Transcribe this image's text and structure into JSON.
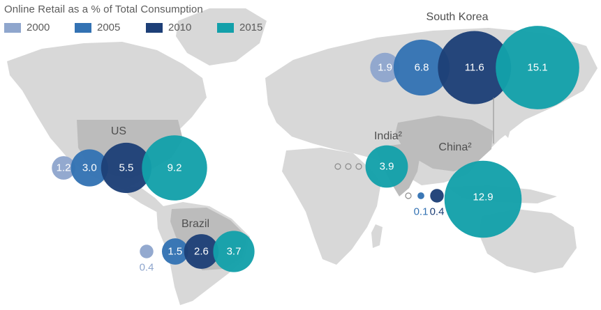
{
  "chart_data": {
    "type": "bubble-map",
    "title": "Online Retail as a % of Total Consumption",
    "legend": [
      {
        "year": "2000",
        "color": "#8fa6cd"
      },
      {
        "year": "2005",
        "color": "#3372b3"
      },
      {
        "year": "2010",
        "color": "#1d3f77"
      },
      {
        "year": "2015",
        "color": "#13a0aa"
      }
    ],
    "regions": [
      {
        "name": "South Korea",
        "values": [
          "1.9",
          "6.8",
          "11.6",
          "15.1"
        ]
      },
      {
        "name": "US",
        "values": [
          "1.2",
          "3.0",
          "5.5",
          "9.2"
        ]
      },
      {
        "name": "India²",
        "values": [
          "",
          "",
          "",
          "3.9"
        ]
      },
      {
        "name": "China²",
        "values": [
          "",
          "0.1",
          "0.4",
          "12.9"
        ]
      },
      {
        "name": "Brazil",
        "values": [
          "0.4",
          "1.5",
          "2.6",
          "3.7"
        ]
      }
    ]
  },
  "colors": {
    "land": "#d8d8d8",
    "highlight_land": "#bcbcbc",
    "bubble_text": "#ffffff",
    "region_label": "#4f4f4f",
    "title_text": "#5b5b5b"
  }
}
